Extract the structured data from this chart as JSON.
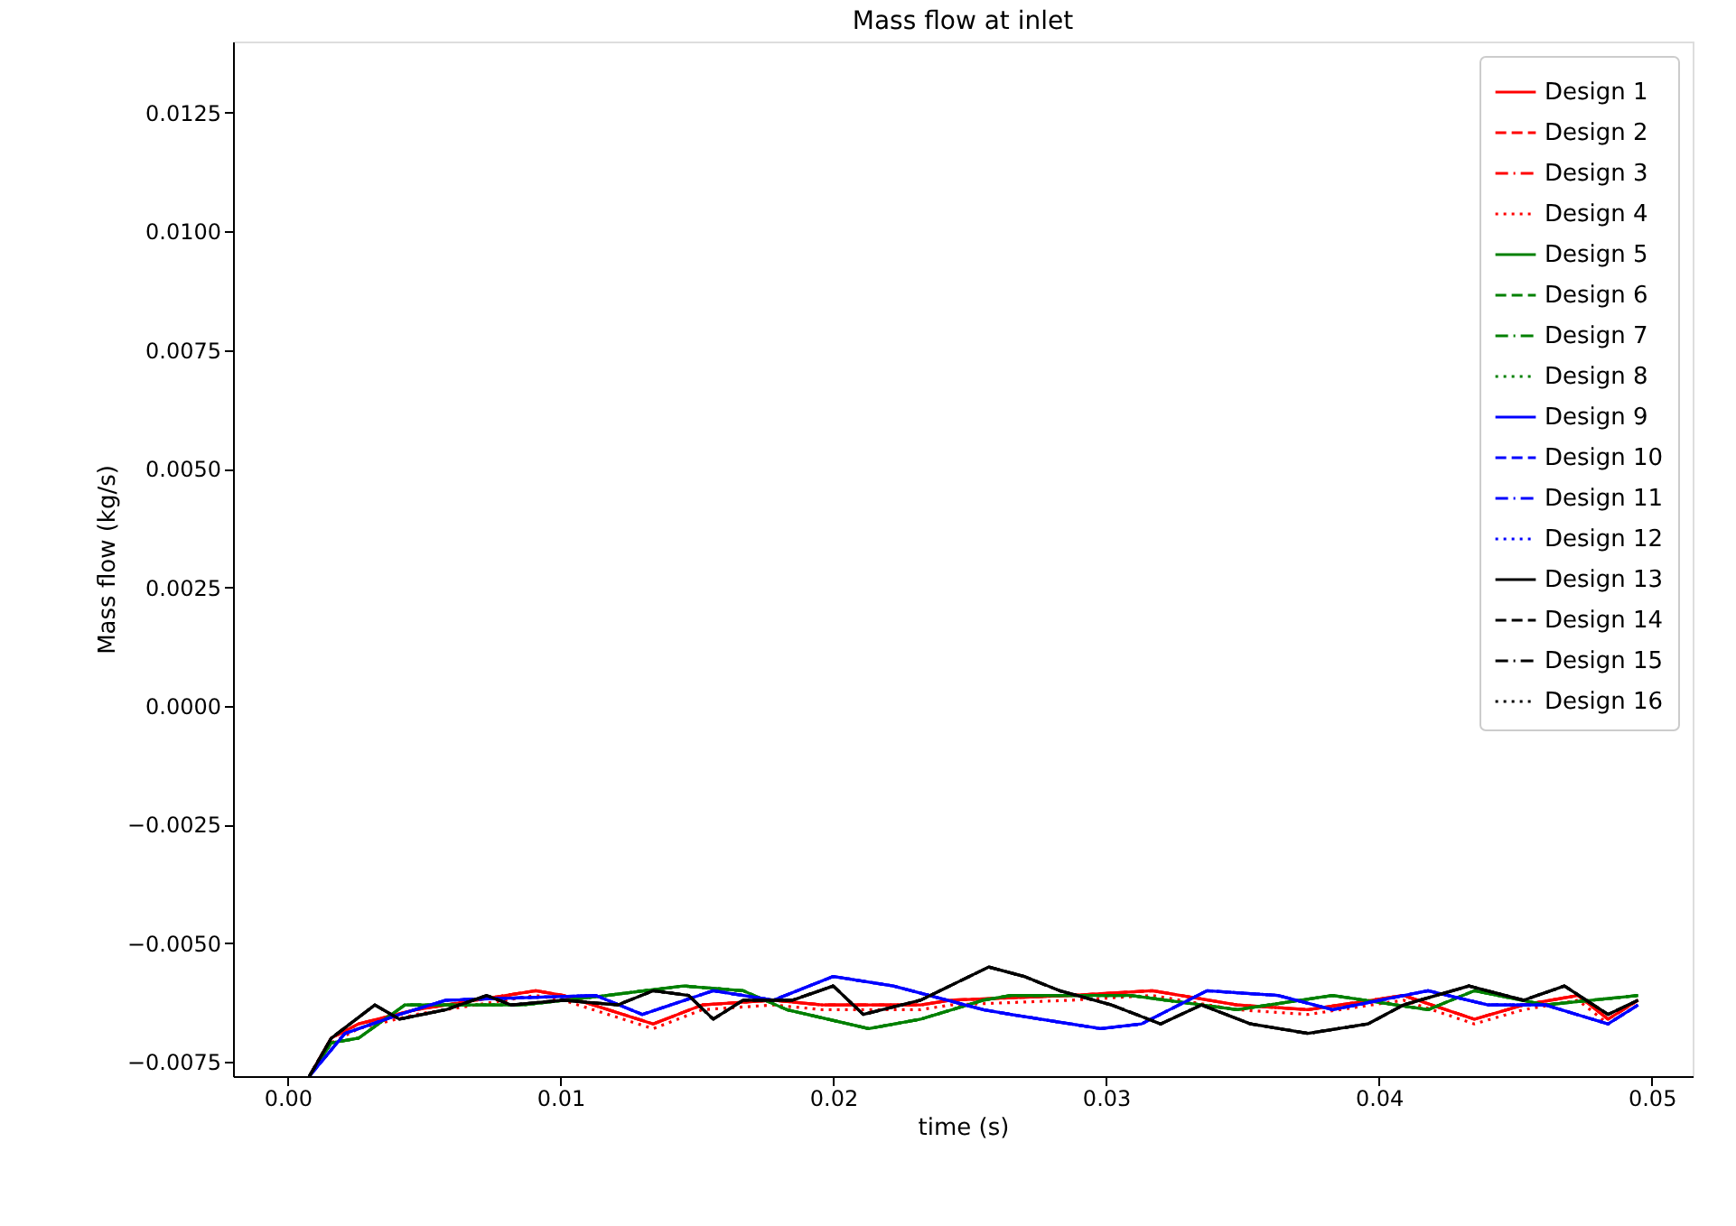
{
  "chart_data": {
    "type": "line",
    "title": "Mass flow at inlet",
    "xlabel": "time (s)",
    "ylabel": "Mass flow (kg/s)",
    "xlim": [
      -0.002,
      0.0515
    ],
    "ylim": [
      -0.0078,
      0.014
    ],
    "xticks": [
      {
        "value": 0,
        "label": "0.00"
      },
      {
        "value": 0.01,
        "label": "0.01"
      },
      {
        "value": 0.02,
        "label": "0.02"
      },
      {
        "value": 0.03,
        "label": "0.03"
      },
      {
        "value": 0.04,
        "label": "0.04"
      },
      {
        "value": 0.05,
        "label": "0.05"
      }
    ],
    "yticks": [
      {
        "value": -0.0075,
        "label": "−0.0075"
      },
      {
        "value": -0.005,
        "label": "−0.0050"
      },
      {
        "value": -0.0025,
        "label": "−0.0025"
      },
      {
        "value": 0,
        "label": "0.0000"
      },
      {
        "value": 0.0025,
        "label": "0.0025"
      },
      {
        "value": 0.005,
        "label": "0.0050"
      },
      {
        "value": 0.0075,
        "label": "0.0075"
      },
      {
        "value": 0.01,
        "label": "0.0100"
      },
      {
        "value": 0.0125,
        "label": "0.0125"
      }
    ],
    "grid": false,
    "legend": "top right",
    "marker": "none",
    "series": [
      {
        "name": "Design 1",
        "color": "#ff0000",
        "line_style": "solid",
        "x": [
          0.0008,
          0.0016,
          0.0026,
          0.0047,
          0.0091,
          0.0101,
          0.0134,
          0.0152,
          0.0178,
          0.0196,
          0.0211,
          0.0232,
          0.0243,
          0.0287,
          0.0317,
          0.0348,
          0.0374,
          0.0409,
          0.0435,
          0.0453,
          0.0473,
          0.0484,
          0.0495
        ],
        "values": [
          -0.0078,
          -0.007,
          -0.0067,
          -0.0064,
          -0.006,
          -0.0061,
          -0.0067,
          -0.0063,
          -0.0062,
          -0.0063,
          -0.0063,
          -0.0063,
          -0.0062,
          -0.0061,
          -0.006,
          -0.0063,
          -0.0064,
          -0.0061,
          -0.0066,
          -0.0063,
          -0.0061,
          -0.0066,
          -0.0062
        ]
      },
      {
        "name": "Design 2",
        "color": "#ff0000",
        "line_style": "dashed",
        "x": [
          0.0008,
          0.0016,
          0.0026,
          0.0047,
          0.0091,
          0.0101,
          0.0134,
          0.0152,
          0.0178,
          0.0196,
          0.0211,
          0.0232,
          0.0243,
          0.0287,
          0.0317,
          0.0348,
          0.0374,
          0.0409,
          0.0435,
          0.0453,
          0.0473,
          0.0484,
          0.0495
        ],
        "values": [
          -0.0078,
          -0.007,
          -0.0067,
          -0.0064,
          -0.006,
          -0.0061,
          -0.0067,
          -0.0063,
          -0.0062,
          -0.0063,
          -0.0063,
          -0.0063,
          -0.0062,
          -0.0061,
          -0.006,
          -0.0063,
          -0.0064,
          -0.0061,
          -0.0066,
          -0.0063,
          -0.0061,
          -0.0066,
          -0.0062
        ]
      },
      {
        "name": "Design 3",
        "color": "#ff0000",
        "line_style": "dashdot",
        "x": [
          0.0008,
          0.0016,
          0.0026,
          0.0047,
          0.0091,
          0.0101,
          0.0134,
          0.0152,
          0.0178,
          0.0196,
          0.0211,
          0.0232,
          0.0243,
          0.0287,
          0.0317,
          0.0348,
          0.0374,
          0.0409,
          0.0435,
          0.0453,
          0.0473,
          0.0484,
          0.0495
        ],
        "values": [
          -0.0078,
          -0.007,
          -0.0067,
          -0.0064,
          -0.006,
          -0.0061,
          -0.0067,
          -0.0063,
          -0.0062,
          -0.0063,
          -0.0063,
          -0.0063,
          -0.0062,
          -0.0061,
          -0.006,
          -0.0063,
          -0.0064,
          -0.0061,
          -0.0066,
          -0.0063,
          -0.0061,
          -0.0066,
          -0.0062
        ]
      },
      {
        "name": "Design 4",
        "color": "#ff0000",
        "line_style": "dotted",
        "x": [
          0.0008,
          0.0016,
          0.0026,
          0.0047,
          0.0091,
          0.0101,
          0.0134,
          0.0152,
          0.0178,
          0.0196,
          0.0211,
          0.0232,
          0.0243,
          0.0287,
          0.0317,
          0.0348,
          0.0374,
          0.0409,
          0.0435,
          0.0453,
          0.0473,
          0.0484,
          0.0495
        ],
        "values": [
          -0.0078,
          -0.0071,
          -0.0068,
          -0.0065,
          -0.0061,
          -0.0062,
          -0.0068,
          -0.0064,
          -0.0063,
          -0.0064,
          -0.0064,
          -0.0064,
          -0.0063,
          -0.0062,
          -0.0061,
          -0.0064,
          -0.0065,
          -0.0062,
          -0.0067,
          -0.0064,
          -0.0062,
          -0.0067,
          -0.0063
        ]
      },
      {
        "name": "Design 5",
        "color": "#008000",
        "line_style": "solid",
        "x": [
          0.0008,
          0.0016,
          0.0026,
          0.0043,
          0.0086,
          0.0117,
          0.0145,
          0.0167,
          0.0183,
          0.0213,
          0.0232,
          0.0255,
          0.0265,
          0.0309,
          0.0348,
          0.0383,
          0.0418,
          0.0435,
          0.0461,
          0.0495
        ],
        "values": [
          -0.0078,
          -0.0071,
          -0.007,
          -0.0063,
          -0.0063,
          -0.0061,
          -0.0059,
          -0.006,
          -0.0064,
          -0.0068,
          -0.0066,
          -0.0062,
          -0.0061,
          -0.0061,
          -0.0064,
          -0.0061,
          -0.0064,
          -0.006,
          -0.0063,
          -0.0061
        ]
      },
      {
        "name": "Design 6",
        "color": "#008000",
        "line_style": "dashed",
        "x": [
          0.0008,
          0.0016,
          0.0026,
          0.0043,
          0.0086,
          0.0117,
          0.0145,
          0.0167,
          0.0183,
          0.0213,
          0.0232,
          0.0255,
          0.0265,
          0.0309,
          0.0348,
          0.0383,
          0.0418,
          0.0435,
          0.0461,
          0.0495
        ],
        "values": [
          -0.0078,
          -0.0071,
          -0.007,
          -0.0063,
          -0.0063,
          -0.0061,
          -0.0059,
          -0.006,
          -0.0064,
          -0.0068,
          -0.0066,
          -0.0062,
          -0.0061,
          -0.0061,
          -0.0064,
          -0.0061,
          -0.0064,
          -0.006,
          -0.0063,
          -0.0061
        ]
      },
      {
        "name": "Design 7",
        "color": "#008000",
        "line_style": "dashdot",
        "x": [
          0.0008,
          0.0016,
          0.0026,
          0.0043,
          0.0086,
          0.0117,
          0.0145,
          0.0167,
          0.0183,
          0.0213,
          0.0232,
          0.0255,
          0.0265,
          0.0309,
          0.0348,
          0.0383,
          0.0418,
          0.0435,
          0.0461,
          0.0495
        ],
        "values": [
          -0.0078,
          -0.0071,
          -0.007,
          -0.0063,
          -0.0063,
          -0.0061,
          -0.0059,
          -0.006,
          -0.0064,
          -0.0068,
          -0.0066,
          -0.0062,
          -0.0061,
          -0.0061,
          -0.0064,
          -0.0061,
          -0.0064,
          -0.006,
          -0.0063,
          -0.0061
        ]
      },
      {
        "name": "Design 8",
        "color": "#008000",
        "line_style": "dotted",
        "x": [
          0.0008,
          0.0016,
          0.0026,
          0.0043,
          0.0086,
          0.0117,
          0.0145,
          0.0167,
          0.0183,
          0.0213,
          0.0232,
          0.0255,
          0.0265,
          0.0309,
          0.0348,
          0.0383,
          0.0418,
          0.0435,
          0.0461,
          0.0495
        ],
        "values": [
          -0.0078,
          -0.0071,
          -0.007,
          -0.0063,
          -0.0063,
          -0.0061,
          -0.0059,
          -0.006,
          -0.0064,
          -0.0068,
          -0.0066,
          -0.0062,
          -0.0061,
          -0.0061,
          -0.0064,
          -0.0061,
          -0.0064,
          -0.006,
          -0.0063,
          -0.0061
        ]
      },
      {
        "name": "Design 9",
        "color": "#0000ff",
        "line_style": "solid",
        "x": [
          0.0008,
          0.0021,
          0.0041,
          0.0058,
          0.0113,
          0.013,
          0.0156,
          0.0178,
          0.02,
          0.0222,
          0.0255,
          0.0265,
          0.0298,
          0.0313,
          0.0337,
          0.0363,
          0.0383,
          0.0418,
          0.044,
          0.0461,
          0.0484,
          0.0495
        ],
        "values": [
          -0.0078,
          -0.0069,
          -0.0065,
          -0.0062,
          -0.0061,
          -0.0065,
          -0.006,
          -0.0062,
          -0.0057,
          -0.0059,
          -0.0064,
          -0.0065,
          -0.0068,
          -0.0067,
          -0.006,
          -0.0061,
          -0.0064,
          -0.006,
          -0.0063,
          -0.0063,
          -0.0067,
          -0.0063
        ]
      },
      {
        "name": "Design 10",
        "color": "#0000ff",
        "line_style": "dashed",
        "x": [
          0.0008,
          0.0021,
          0.0041,
          0.0058,
          0.0113,
          0.013,
          0.0156,
          0.0178,
          0.02,
          0.0222,
          0.0255,
          0.0265,
          0.0298,
          0.0313,
          0.0337,
          0.0363,
          0.0383,
          0.0418,
          0.044,
          0.0461,
          0.0484,
          0.0495
        ],
        "values": [
          -0.0078,
          -0.0069,
          -0.0065,
          -0.0062,
          -0.0061,
          -0.0065,
          -0.006,
          -0.0062,
          -0.0057,
          -0.0059,
          -0.0064,
          -0.0065,
          -0.0068,
          -0.0067,
          -0.006,
          -0.0061,
          -0.0064,
          -0.006,
          -0.0063,
          -0.0063,
          -0.0067,
          -0.0063
        ]
      },
      {
        "name": "Design 11",
        "color": "#0000ff",
        "line_style": "dashdot",
        "x": [
          0.0008,
          0.0021,
          0.0041,
          0.0058,
          0.0113,
          0.013,
          0.0156,
          0.0178,
          0.02,
          0.0222,
          0.0255,
          0.0265,
          0.0298,
          0.0313,
          0.0337,
          0.0363,
          0.0383,
          0.0418,
          0.044,
          0.0461,
          0.0484,
          0.0495
        ],
        "values": [
          -0.0078,
          -0.0069,
          -0.0065,
          -0.0062,
          -0.0061,
          -0.0065,
          -0.006,
          -0.0062,
          -0.0057,
          -0.0059,
          -0.0064,
          -0.0065,
          -0.0068,
          -0.0067,
          -0.006,
          -0.0061,
          -0.0064,
          -0.006,
          -0.0063,
          -0.0063,
          -0.0067,
          -0.0063
        ]
      },
      {
        "name": "Design 12",
        "color": "#0000ff",
        "line_style": "dotted",
        "x": [
          0.0008,
          0.0021,
          0.0041,
          0.0058,
          0.0113,
          0.013,
          0.0156,
          0.0178,
          0.02,
          0.0222,
          0.0255,
          0.0265,
          0.0298,
          0.0313,
          0.0337,
          0.0363,
          0.0383,
          0.0418,
          0.044,
          0.0461,
          0.0484,
          0.0495
        ],
        "values": [
          -0.0078,
          -0.0069,
          -0.0065,
          -0.0062,
          -0.0061,
          -0.0065,
          -0.006,
          -0.0062,
          -0.0057,
          -0.0059,
          -0.0064,
          -0.0065,
          -0.0068,
          -0.0067,
          -0.006,
          -0.0061,
          -0.0064,
          -0.006,
          -0.0063,
          -0.0063,
          -0.0067,
          -0.0063
        ]
      },
      {
        "name": "Design 13",
        "color": "#000000",
        "line_style": "solid",
        "x": [
          0.0008,
          0.0016,
          0.0032,
          0.0041,
          0.0058,
          0.0073,
          0.0082,
          0.0101,
          0.0121,
          0.0134,
          0.0147,
          0.0156,
          0.0167,
          0.0185,
          0.02,
          0.0211,
          0.0232,
          0.0257,
          0.027,
          0.0283,
          0.0302,
          0.032,
          0.0335,
          0.0353,
          0.0374,
          0.0396,
          0.0409,
          0.0433,
          0.0453,
          0.0468,
          0.0484,
          0.0495
        ],
        "values": [
          -0.0078,
          -0.007,
          -0.0063,
          -0.0066,
          -0.0064,
          -0.0061,
          -0.0063,
          -0.0062,
          -0.0063,
          -0.006,
          -0.0061,
          -0.0066,
          -0.0062,
          -0.0062,
          -0.0059,
          -0.0065,
          -0.0062,
          -0.0055,
          -0.0057,
          -0.006,
          -0.0063,
          -0.0067,
          -0.0063,
          -0.0067,
          -0.0069,
          -0.0067,
          -0.0063,
          -0.0059,
          -0.0062,
          -0.0059,
          -0.0065,
          -0.0062
        ]
      },
      {
        "name": "Design 14",
        "color": "#000000",
        "line_style": "dashed",
        "x": [
          0.0008,
          0.0016,
          0.0032,
          0.0041,
          0.0058,
          0.0073,
          0.0082,
          0.0101,
          0.0121,
          0.0134,
          0.0147,
          0.0156,
          0.0167,
          0.0185,
          0.02,
          0.0211,
          0.0232,
          0.0257,
          0.027,
          0.0283,
          0.0302,
          0.032,
          0.0335,
          0.0353,
          0.0374,
          0.0396,
          0.0409,
          0.0433,
          0.0453,
          0.0468,
          0.0484,
          0.0495
        ],
        "values": [
          -0.0078,
          -0.007,
          -0.0063,
          -0.0066,
          -0.0064,
          -0.0061,
          -0.0063,
          -0.0062,
          -0.0063,
          -0.006,
          -0.0061,
          -0.0066,
          -0.0062,
          -0.0062,
          -0.0059,
          -0.0065,
          -0.0062,
          -0.0055,
          -0.0057,
          -0.006,
          -0.0063,
          -0.0067,
          -0.0063,
          -0.0067,
          -0.0069,
          -0.0067,
          -0.0063,
          -0.0059,
          -0.0062,
          -0.0059,
          -0.0065,
          -0.0062
        ]
      },
      {
        "name": "Design 15",
        "color": "#000000",
        "line_style": "dashdot",
        "x": [
          0.0008,
          0.0016,
          0.0032,
          0.0041,
          0.0058,
          0.0073,
          0.0082,
          0.0101,
          0.0121,
          0.0134,
          0.0147,
          0.0156,
          0.0167,
          0.0185,
          0.02,
          0.0211,
          0.0232,
          0.0257,
          0.027,
          0.0283,
          0.0302,
          0.032,
          0.0335,
          0.0353,
          0.0374,
          0.0396,
          0.0409,
          0.0433,
          0.0453,
          0.0468,
          0.0484,
          0.0495
        ],
        "values": [
          -0.0078,
          -0.007,
          -0.0063,
          -0.0066,
          -0.0064,
          -0.0061,
          -0.0063,
          -0.0062,
          -0.0063,
          -0.006,
          -0.0061,
          -0.0066,
          -0.0062,
          -0.0062,
          -0.0059,
          -0.0065,
          -0.0062,
          -0.0055,
          -0.0057,
          -0.006,
          -0.0063,
          -0.0067,
          -0.0063,
          -0.0067,
          -0.0069,
          -0.0067,
          -0.0063,
          -0.0059,
          -0.0062,
          -0.0059,
          -0.0065,
          -0.0062
        ]
      },
      {
        "name": "Design 16",
        "color": "#000000",
        "line_style": "dotted",
        "x": [
          0.0008,
          0.0016,
          0.0032,
          0.0041,
          0.0058,
          0.0073,
          0.0082,
          0.0101,
          0.0121,
          0.0134,
          0.0147,
          0.0156,
          0.0167,
          0.0185,
          0.02,
          0.0211,
          0.0232,
          0.0257,
          0.027,
          0.0283,
          0.0302,
          0.032,
          0.0335,
          0.0353,
          0.0374,
          0.0396,
          0.0409,
          0.0433,
          0.0453,
          0.0468,
          0.0484,
          0.0495
        ],
        "values": [
          -0.0078,
          -0.007,
          -0.0063,
          -0.0066,
          -0.0064,
          -0.0061,
          -0.0063,
          -0.0062,
          -0.0063,
          -0.006,
          -0.0061,
          -0.0066,
          -0.0062,
          -0.0062,
          -0.0059,
          -0.0065,
          -0.0062,
          -0.0055,
          -0.0057,
          -0.006,
          -0.0063,
          -0.0067,
          -0.0063,
          -0.0067,
          -0.0069,
          -0.0067,
          -0.0063,
          -0.0059,
          -0.0062,
          -0.0059,
          -0.0065,
          -0.0062
        ]
      }
    ]
  }
}
